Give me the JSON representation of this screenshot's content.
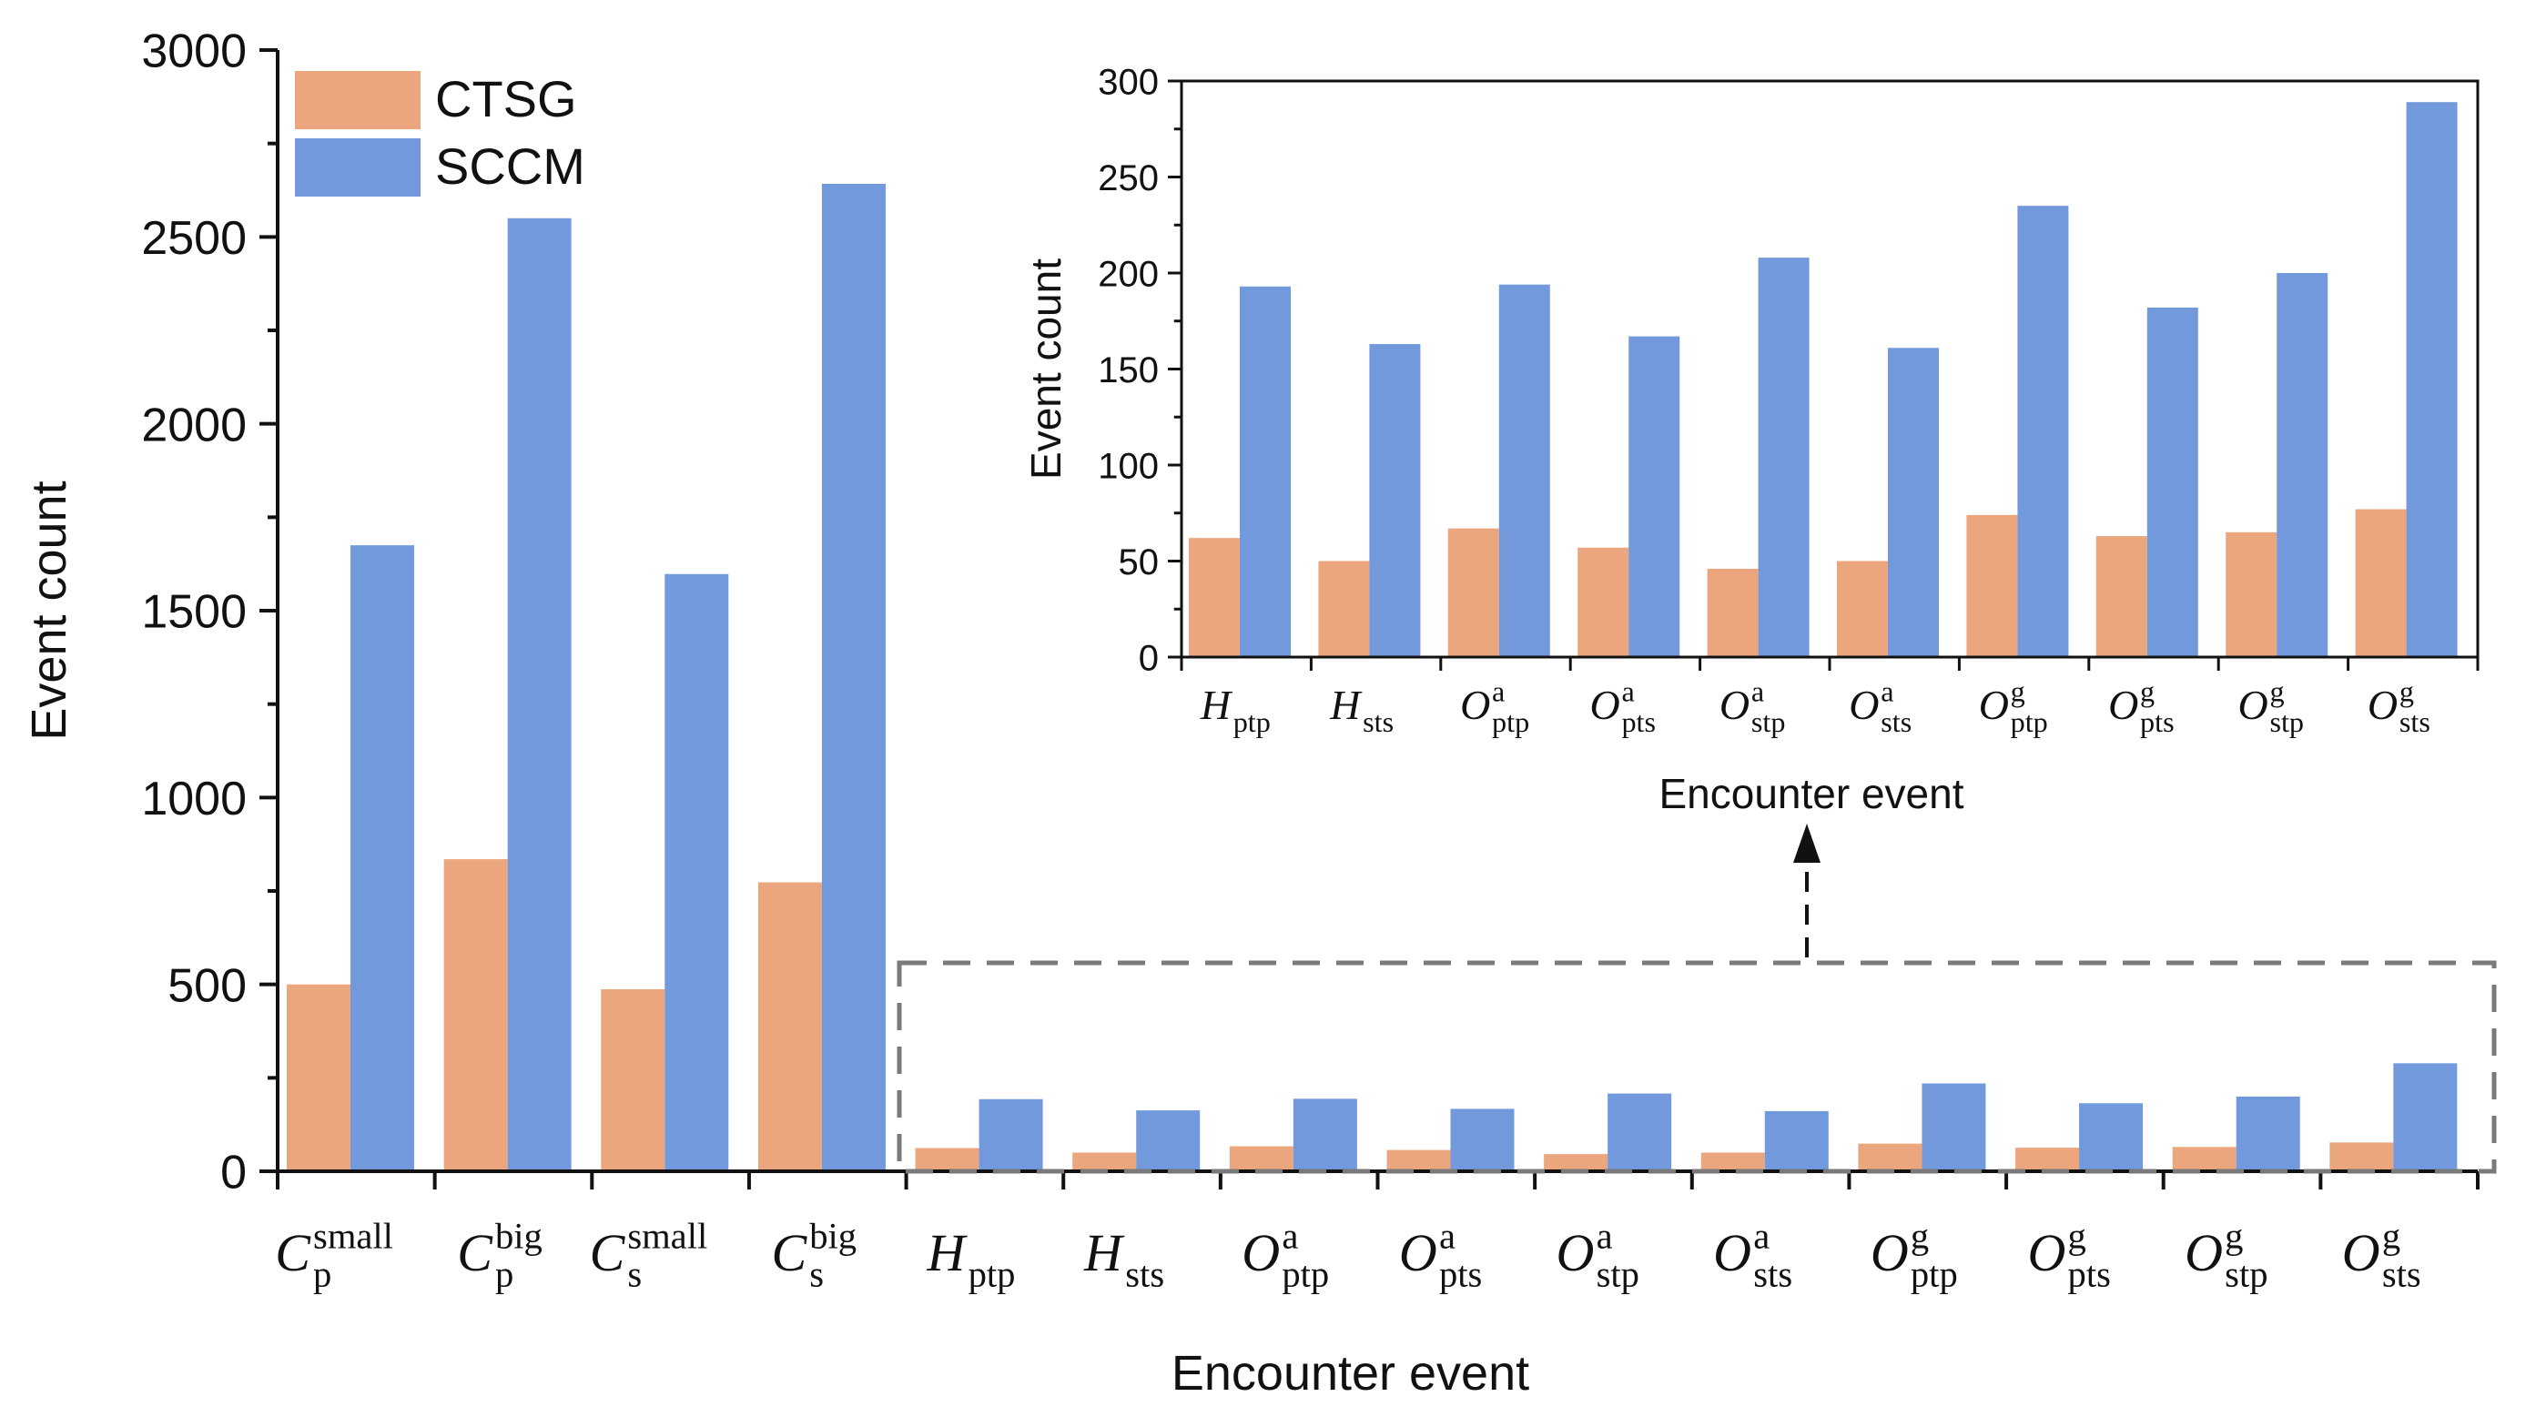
{
  "colors": {
    "ctsg": "#EBA67D",
    "sccm": "#7299DB",
    "axis": "#111111",
    "zoom_box": "#7a7a7a"
  },
  "chart_data": [
    {
      "id": "main",
      "type": "bar",
      "title": "",
      "xlabel": "Encounter event",
      "ylabel": "Event count",
      "ylim": [
        0,
        3000
      ],
      "yticks": [
        "0",
        "500",
        "1000",
        "1500",
        "2000",
        "2500",
        "3000"
      ],
      "grid": false,
      "legend_position": "top-left",
      "categories": [
        {
          "base": "C",
          "sup": "small",
          "sub": "p"
        },
        {
          "base": "C",
          "sup": "big",
          "sub": "p"
        },
        {
          "base": "C",
          "sup": "small",
          "sub": "s"
        },
        {
          "base": "C",
          "sup": "big",
          "sub": "s"
        },
        {
          "base": "H",
          "sup": "",
          "sub": "ptp"
        },
        {
          "base": "H",
          "sup": "",
          "sub": "sts"
        },
        {
          "base": "O",
          "sup": "a",
          "sub": "ptp"
        },
        {
          "base": "O",
          "sup": "a",
          "sub": "pts"
        },
        {
          "base": "O",
          "sup": "a",
          "sub": "stp"
        },
        {
          "base": "O",
          "sup": "a",
          "sub": "sts"
        },
        {
          "base": "O",
          "sup": "g",
          "sub": "ptp"
        },
        {
          "base": "O",
          "sup": "g",
          "sub": "pts"
        },
        {
          "base": "O",
          "sup": "g",
          "sub": "stp"
        },
        {
          "base": "O",
          "sup": "g",
          "sub": "sts"
        }
      ],
      "series": [
        {
          "name": "CTSG",
          "values": [
            500,
            835,
            487,
            773,
            62,
            50,
            67,
            57,
            46,
            50,
            74,
            63,
            65,
            77
          ]
        },
        {
          "name": "SCCM",
          "values": [
            1675,
            2550,
            1598,
            2642,
            193,
            163,
            194,
            167,
            208,
            161,
            235,
            182,
            200,
            289
          ]
        }
      ]
    },
    {
      "id": "inset",
      "type": "bar",
      "title": "",
      "xlabel": "Encounter event",
      "ylabel": "Event count",
      "ylim": [
        0,
        300
      ],
      "yticks": [
        "0",
        "50",
        "100",
        "150",
        "200",
        "250",
        "300"
      ],
      "grid": false,
      "categories": [
        {
          "base": "H",
          "sup": "",
          "sub": "ptp"
        },
        {
          "base": "H",
          "sup": "",
          "sub": "sts"
        },
        {
          "base": "O",
          "sup": "a",
          "sub": "ptp"
        },
        {
          "base": "O",
          "sup": "a",
          "sub": "pts"
        },
        {
          "base": "O",
          "sup": "a",
          "sub": "stp"
        },
        {
          "base": "O",
          "sup": "a",
          "sub": "sts"
        },
        {
          "base": "O",
          "sup": "g",
          "sub": "ptp"
        },
        {
          "base": "O",
          "sup": "g",
          "sub": "pts"
        },
        {
          "base": "O",
          "sup": "g",
          "sub": "stp"
        },
        {
          "base": "O",
          "sup": "g",
          "sub": "sts"
        }
      ],
      "series": [
        {
          "name": "CTSG",
          "values": [
            62,
            50,
            67,
            57,
            46,
            50,
            74,
            63,
            65,
            77
          ]
        },
        {
          "name": "SCCM",
          "values": [
            193,
            163,
            194,
            167,
            208,
            161,
            235,
            182,
            200,
            289
          ]
        }
      ]
    }
  ]
}
